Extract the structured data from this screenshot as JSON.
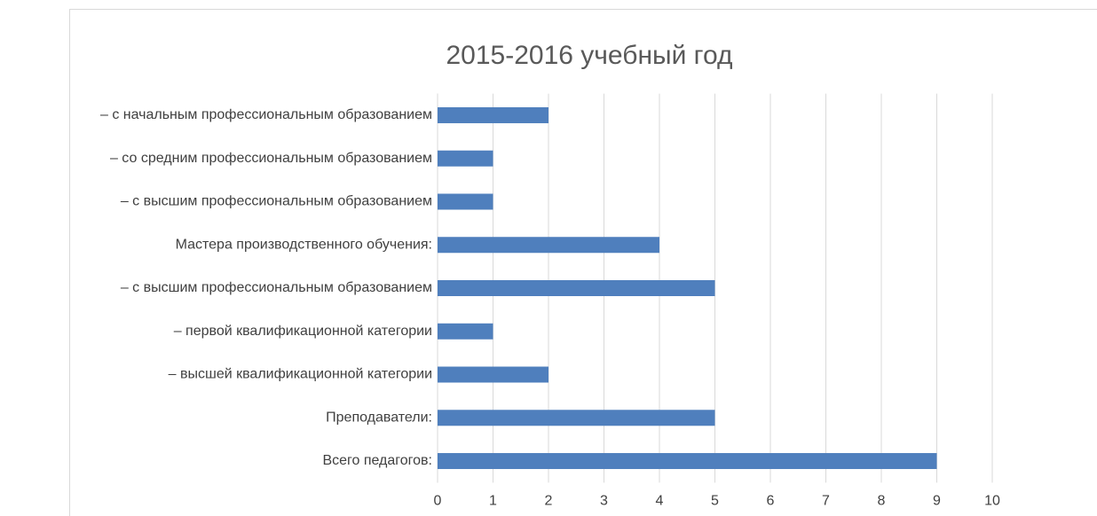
{
  "chart_data": {
    "type": "bar",
    "orientation": "horizontal",
    "title": "2015-2016 учебный год",
    "categories": [
      "Всего педагогов:",
      "Преподаватели:",
      "– высшей квалификационной категории",
      "– первой квалификационной категории",
      "– с высшим профессиональным образованием",
      "Мастера производственного обучения:",
      "– с высшим профессиональным образованием",
      "– со средним профессиональным образованием",
      "– с начальным профессиональным образованием"
    ],
    "values": [
      9,
      5,
      2,
      1,
      5,
      4,
      1,
      1,
      2
    ],
    "color": "#4f7fbd",
    "xlim": [
      0,
      10
    ],
    "xticks": [
      0,
      1,
      2,
      3,
      4,
      5,
      6,
      7,
      8,
      9,
      10
    ],
    "grid": true
  }
}
